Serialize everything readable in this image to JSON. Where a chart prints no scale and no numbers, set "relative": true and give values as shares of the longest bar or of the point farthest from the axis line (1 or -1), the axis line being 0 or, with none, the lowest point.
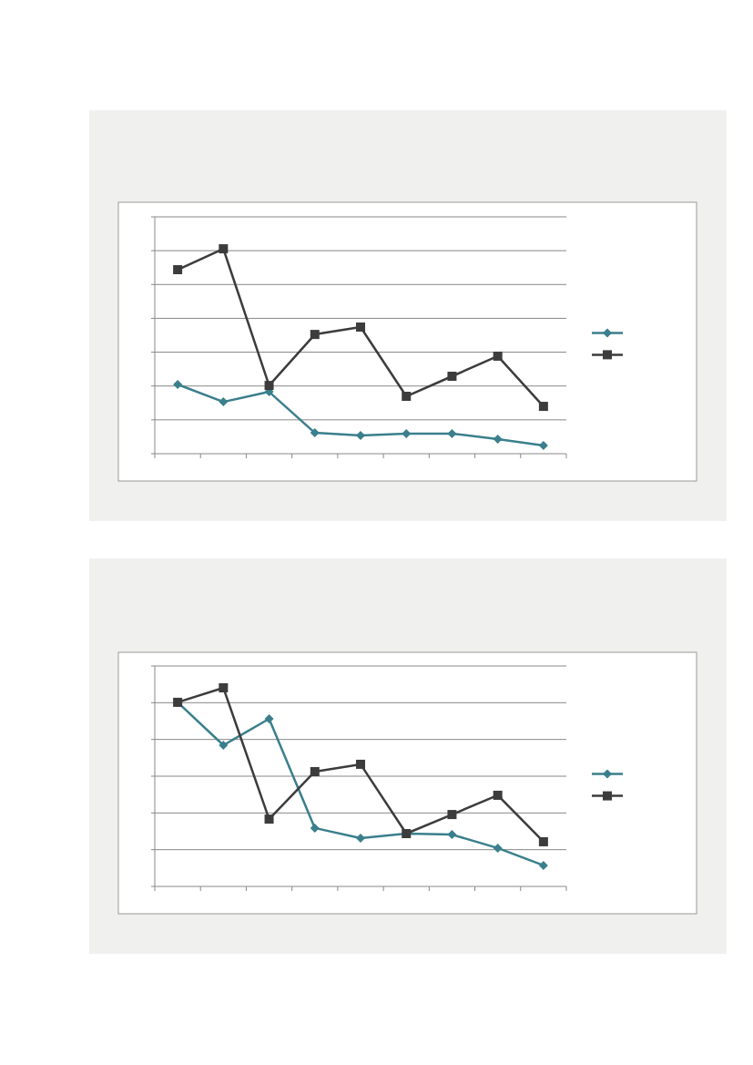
{
  "chart_data": [
    {
      "type": "line",
      "relative": true,
      "categories": [
        null,
        null,
        null,
        null,
        null,
        null,
        null,
        null,
        null
      ],
      "grid": "y",
      "series": [
        {
          "color": "#3a7f8c",
          "marker": "diamond",
          "values": [
            0.338,
            0.253,
            0.302,
            0.102,
            0.089,
            0.098,
            0.098,
            0.071,
            0.04
          ]
        },
        {
          "color": "#3c3c3c",
          "marker": "square",
          "values": [
            0.898,
            1,
            0.333,
            0.582,
            0.618,
            0.28,
            0.378,
            0.476,
            0.231
          ]
        }
      ]
    },
    {
      "type": "line",
      "relative": true,
      "categories": [
        null,
        null,
        null,
        null,
        null,
        null,
        null,
        null,
        null
      ],
      "grid": "y",
      "series": [
        {
          "color": "#3a7f8c",
          "marker": "diamond",
          "values": [
            0.927,
            0.711,
            0.844,
            0.294,
            0.243,
            0.266,
            0.261,
            0.193,
            0.106
          ]
        },
        {
          "color": "#3c3c3c",
          "marker": "square",
          "values": [
            0.927,
            1,
            0.339,
            0.578,
            0.615,
            0.266,
            0.362,
            0.459,
            0.225
          ]
        }
      ]
    }
  ]
}
